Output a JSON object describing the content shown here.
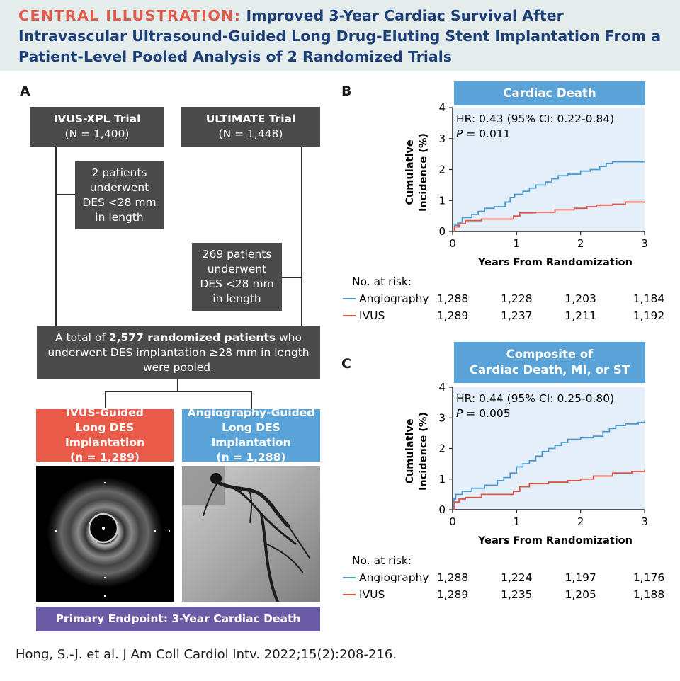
{
  "header": {
    "label": "CENTRAL ILLUSTRATION:",
    "title": "Improved 3-Year Cardiac Survival After Intravascular Ultrasound-Guided Long Drug-Eluting Stent Implantation From a Patient-Level Pooled Analysis of 2 Randomized Trials"
  },
  "panel_a": {
    "letter": "A",
    "trial1": {
      "name": "IVUS-XPL Trial",
      "n": "(N = 1,400)"
    },
    "trial2": {
      "name": "ULTIMATE Trial",
      "n": "(N = 1,448)"
    },
    "excl1": [
      "2 patients",
      "underwent",
      "DES <28 mm",
      "in length"
    ],
    "excl2": [
      "269 patients",
      "underwent",
      "DES <28 mm",
      "in length"
    ],
    "pooled": {
      "line1_pre": "A total of ",
      "line1_bold": "2,577 randomized patients",
      "line1_post": " who",
      "line2": "underwent DES implantation ≥28 mm in length",
      "line3": "were pooled."
    },
    "ivus_arm": [
      "IVUS-Guided",
      "Long DES Implantation",
      "(n = 1,289)"
    ],
    "angio_arm": [
      "Angiography-Guided",
      "Long DES Implantation",
      "(n = 1,288)"
    ],
    "endpoint": "Primary Endpoint: 3-Year Cardiac Death"
  },
  "citation": "Hong, S.-J. et al. J Am Coll Cardiol Intv. 2022;15(2):208-216.",
  "colors": {
    "angiography": "#4d9bd1",
    "ivus": "#e05547",
    "title_bar": "#5aa3d8",
    "dark_box": "#4a4a4a",
    "endpoint": "#6b5aa6"
  },
  "chart_data": [
    {
      "panel": "B",
      "type": "line",
      "title": [
        "Cardiac Death"
      ],
      "hr_text": "HR: 0.43 (95% CI: 0.22-0.84)",
      "p_label": "P",
      "p_value": " = 0.011",
      "ylabel": [
        "Cumulative",
        "Incidence (%)"
      ],
      "xlabel": "Years From Randomization",
      "xlim": [
        0,
        3
      ],
      "ylim": [
        0,
        4
      ],
      "xticks": [
        "0",
        "1",
        "2",
        "3"
      ],
      "yticks": [
        "0",
        "1",
        "2",
        "3",
        "4"
      ],
      "series": [
        {
          "name": "Angiography",
          "color": "#4d9bd1",
          "points": [
            [
              0,
              0
            ],
            [
              0.03,
              0.2
            ],
            [
              0.08,
              0.3
            ],
            [
              0.15,
              0.45
            ],
            [
              0.3,
              0.55
            ],
            [
              0.4,
              0.65
            ],
            [
              0.5,
              0.75
            ],
            [
              0.65,
              0.8
            ],
            [
              0.82,
              0.95
            ],
            [
              0.9,
              1.1
            ],
            [
              0.97,
              1.2
            ],
            [
              1.1,
              1.3
            ],
            [
              1.2,
              1.4
            ],
            [
              1.3,
              1.5
            ],
            [
              1.45,
              1.6
            ],
            [
              1.55,
              1.7
            ],
            [
              1.65,
              1.8
            ],
            [
              1.8,
              1.85
            ],
            [
              2.0,
              1.95
            ],
            [
              2.15,
              2.0
            ],
            [
              2.3,
              2.1
            ],
            [
              2.4,
              2.2
            ],
            [
              2.5,
              2.25
            ],
            [
              3.0,
              2.25
            ]
          ]
        },
        {
          "name": "IVUS",
          "color": "#e05547",
          "points": [
            [
              0,
              0
            ],
            [
              0.03,
              0.15
            ],
            [
              0.1,
              0.25
            ],
            [
              0.2,
              0.35
            ],
            [
              0.45,
              0.4
            ],
            [
              0.95,
              0.5
            ],
            [
              1.05,
              0.6
            ],
            [
              1.3,
              0.62
            ],
            [
              1.6,
              0.7
            ],
            [
              1.9,
              0.75
            ],
            [
              2.1,
              0.8
            ],
            [
              2.25,
              0.85
            ],
            [
              2.5,
              0.88
            ],
            [
              2.7,
              0.95
            ],
            [
              3.0,
              0.97
            ]
          ]
        }
      ],
      "risk_label": "No. at risk:",
      "risk": [
        {
          "name": "Angiography",
          "values": [
            "1,288",
            "1,228",
            "1,203",
            "1,184"
          ]
        },
        {
          "name": "IVUS",
          "values": [
            "1,289",
            "1,237",
            "1,211",
            "1,192"
          ]
        }
      ]
    },
    {
      "panel": "C",
      "type": "line",
      "title": [
        "Composite of",
        "Cardiac Death, MI, or ST"
      ],
      "hr_text": "HR: 0.44 (95% CI: 0.25-0.80)",
      "p_label": "P",
      "p_value": " = 0.005",
      "ylabel": [
        "Cumulative",
        "Incidence (%)"
      ],
      "xlabel": "Years From Randomization",
      "xlim": [
        0,
        3
      ],
      "ylim": [
        0,
        4
      ],
      "xticks": [
        "0",
        "1",
        "2",
        "3"
      ],
      "yticks": [
        "0",
        "1",
        "2",
        "3",
        "4"
      ],
      "series": [
        {
          "name": "Angiography",
          "color": "#4d9bd1",
          "points": [
            [
              0,
              0
            ],
            [
              0.02,
              0.35
            ],
            [
              0.05,
              0.5
            ],
            [
              0.15,
              0.6
            ],
            [
              0.3,
              0.7
            ],
            [
              0.5,
              0.8
            ],
            [
              0.7,
              0.95
            ],
            [
              0.8,
              1.05
            ],
            [
              0.9,
              1.2
            ],
            [
              1.0,
              1.4
            ],
            [
              1.1,
              1.5
            ],
            [
              1.2,
              1.6
            ],
            [
              1.3,
              1.75
            ],
            [
              1.4,
              1.9
            ],
            [
              1.5,
              2.0
            ],
            [
              1.6,
              2.1
            ],
            [
              1.7,
              2.2
            ],
            [
              1.8,
              2.3
            ],
            [
              2.0,
              2.35
            ],
            [
              2.2,
              2.4
            ],
            [
              2.35,
              2.55
            ],
            [
              2.45,
              2.65
            ],
            [
              2.55,
              2.75
            ],
            [
              2.7,
              2.8
            ],
            [
              2.9,
              2.85
            ],
            [
              3.0,
              2.9
            ]
          ]
        },
        {
          "name": "IVUS",
          "color": "#e05547",
          "points": [
            [
              0,
              0
            ],
            [
              0.03,
              0.25
            ],
            [
              0.1,
              0.35
            ],
            [
              0.2,
              0.4
            ],
            [
              0.45,
              0.5
            ],
            [
              0.95,
              0.6
            ],
            [
              1.05,
              0.75
            ],
            [
              1.2,
              0.85
            ],
            [
              1.5,
              0.9
            ],
            [
              1.8,
              0.95
            ],
            [
              2.0,
              1.0
            ],
            [
              2.2,
              1.1
            ],
            [
              2.5,
              1.2
            ],
            [
              2.8,
              1.25
            ],
            [
              3.0,
              1.3
            ]
          ]
        }
      ],
      "risk_label": "No. at risk:",
      "risk": [
        {
          "name": "Angiography",
          "values": [
            "1,288",
            "1,224",
            "1,197",
            "1,176"
          ]
        },
        {
          "name": "IVUS",
          "values": [
            "1,289",
            "1,235",
            "1,205",
            "1,188"
          ]
        }
      ]
    }
  ]
}
